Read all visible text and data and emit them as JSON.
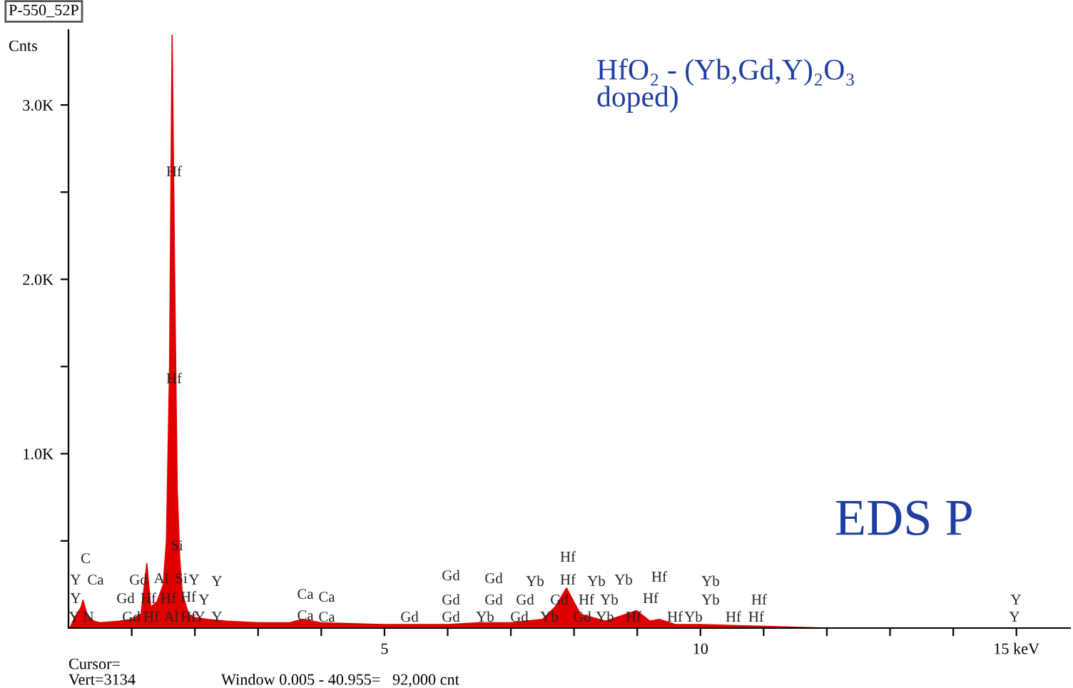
{
  "chart_data": {
    "type": "area",
    "title": "P-550_52P",
    "ylabel": "Cnts",
    "color": "#e00000",
    "x": [
      0.02,
      0.1,
      0.2,
      0.23,
      0.3,
      0.4,
      0.5,
      0.8,
      1.0,
      1.15,
      1.24,
      1.3,
      1.4,
      1.5,
      1.55,
      1.6,
      1.64,
      1.68,
      1.72,
      1.76,
      1.8,
      1.9,
      2.0,
      2.2,
      2.5,
      3.0,
      3.5,
      3.7,
      4.0,
      5.0,
      6.0,
      6.5,
      7.0,
      7.5,
      7.7,
      7.88,
      8.1,
      8.5,
      8.99,
      9.2,
      9.35,
      9.6,
      10.0,
      11.0,
      12.0,
      13.0,
      15.8
    ],
    "values": [
      0,
      60,
      120,
      160,
      70,
      40,
      30,
      40,
      50,
      80,
      370,
      120,
      150,
      250,
      500,
      1500,
      3400,
      2000,
      800,
      400,
      200,
      80,
      60,
      50,
      40,
      30,
      30,
      50,
      30,
      20,
      20,
      30,
      30,
      50,
      120,
      230,
      80,
      40,
      100,
      40,
      50,
      20,
      20,
      10,
      0,
      0,
      0
    ],
    "xlim": [
      0,
      15.85
    ],
    "xticks": [
      {
        "value": 1,
        "label": null
      },
      {
        "value": 2,
        "label": null
      },
      {
        "value": 3,
        "label": null
      },
      {
        "value": 4,
        "label": null
      },
      {
        "value": 5,
        "label": "5"
      },
      {
        "value": 6,
        "label": null
      },
      {
        "value": 7,
        "label": null
      },
      {
        "value": 8,
        "label": null
      },
      {
        "value": 9,
        "label": null
      },
      {
        "value": 10,
        "label": "10"
      },
      {
        "value": 11,
        "label": null
      },
      {
        "value": 12,
        "label": null
      },
      {
        "value": 13,
        "label": null
      },
      {
        "value": 14,
        "label": null
      },
      {
        "value": 15,
        "label": "15 keV"
      }
    ],
    "ylim": [
      0,
      3430
    ],
    "yticks": [
      {
        "value": 500,
        "label": null
      },
      {
        "value": 1000,
        "label": "1.0K"
      },
      {
        "value": 1500,
        "label": null
      },
      {
        "value": 2000,
        "label": "2.0K"
      },
      {
        "value": 2500,
        "label": null
      },
      {
        "value": 3000,
        "label": "3.0K"
      }
    ],
    "grid": false,
    "legend": false,
    "annotations": [
      "HfO₂ - (Yb,Gd,Y)₂O₃\ndoped)",
      "EDS P",
      "Cursor=",
      "Vert=3134",
      "Window 0.005 - 40.955=   92,000 cnt",
      "Hf",
      "Hf",
      "Si",
      "C",
      "Y",
      "Ca",
      "Gd",
      "Al",
      "Si",
      "Y",
      "Y",
      "Y",
      "Gd",
      "Hf",
      "Hf",
      "Hf",
      "Y",
      "Y",
      "N",
      "Gd",
      "Hf",
      "Al",
      "Hf",
      "Y",
      "Y",
      "Ca",
      "Ca",
      "Ca",
      "Ca",
      "Hf",
      "Gd",
      "Gd",
      "Yb",
      "Hf",
      "Yb",
      "Yb",
      "Hf",
      "Yb",
      "Gd",
      "Gd",
      "Gd",
      "Gd",
      "Hf",
      "Yb",
      "Hf",
      "Yb",
      "Hf",
      "Y",
      "Gd",
      "Gd",
      "Yb",
      "Gd",
      "Yb",
      "Gd",
      "Yb",
      "Hf",
      "Hf",
      "Yb",
      "Hf",
      "Hf",
      "Y"
    ]
  }
}
